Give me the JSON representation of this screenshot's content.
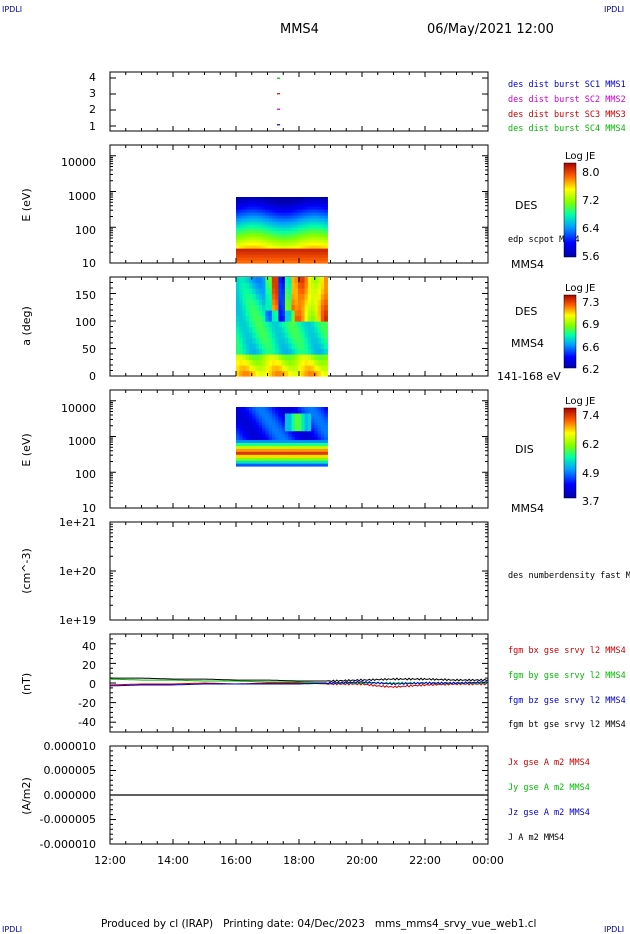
{
  "corner_mark": "IPDLI",
  "header": {
    "spacecraft": "MMS4",
    "datetime": "06/May/2021 12:00"
  },
  "footer": {
    "text": "Produced by cl (IRAP)   Printing date: 04/Dec/2023   mms_mms4_srvy_vue_web1.cl"
  },
  "colors": {
    "mms1": "#0000cc",
    "mms2": "#cc00cc",
    "mms3": "#cc0000",
    "mms4": "#00bb00",
    "black": "#000000"
  },
  "x_axis": {
    "ticks": [
      "12:00",
      "14:00",
      "16:00",
      "18:00",
      "20:00",
      "22:00",
      "00:00"
    ]
  },
  "chart_data": [
    {
      "type": "scatter",
      "panel": "burst-availability",
      "y_ticks": [
        "4",
        "3",
        "2",
        "1"
      ],
      "ylim": [
        0.6,
        4.4
      ],
      "legend": [
        "des dist burst SC1 MMS1",
        "des dist burst SC2 MMS2",
        "des dist burst SC3 MMS3",
        "des dist burst SC4 MMS4"
      ],
      "series": [
        {
          "name": "des dist burst SC1 MMS1",
          "y": 1,
          "x_hours": [
            17.3,
            17.4
          ]
        },
        {
          "name": "des dist burst SC2 MMS2",
          "y": 2,
          "x_hours": [
            17.3,
            17.4
          ]
        },
        {
          "name": "des dist burst SC3 MMS3",
          "y": 3,
          "x_hours": [
            17.3,
            17.4
          ]
        },
        {
          "name": "des dist burst SC4 MMS4",
          "y": 4,
          "x_hours": [
            17.3,
            17.4
          ]
        }
      ]
    },
    {
      "type": "heatmap",
      "panel": "des-energy-spectrogram",
      "ylabel": "E (eV)",
      "y_scale": "log",
      "y_ticks": [
        "10000",
        "1000",
        "100",
        "10"
      ],
      "ylim": [
        10,
        20000
      ],
      "x_range_hours": [
        16.0,
        18.9
      ],
      "right_labels": [
        "DES",
        "edp scpot MMS4",
        "MMS4"
      ],
      "colorbar": {
        "title": "Log JE",
        "ticks": [
          "8.0",
          "7.2",
          "6.4",
          "5.6"
        ],
        "min": 5.6,
        "max": 8.1
      }
    },
    {
      "type": "heatmap",
      "panel": "des-pitch-angle",
      "ylabel": "a (deg)",
      "y_ticks": [
        "150",
        "100",
        "50",
        "0"
      ],
      "ylim": [
        0,
        180
      ],
      "x_range_hours": [
        16.0,
        18.9
      ],
      "right_labels": [
        "DES",
        "MMS4",
        "141-168 eV"
      ],
      "colorbar": {
        "title": "Log JE",
        "ticks": [
          "7.3",
          "6.9",
          "6.6",
          "6.2"
        ],
        "min": 6.2,
        "max": 7.35
      }
    },
    {
      "type": "heatmap",
      "panel": "dis-energy-spectrogram",
      "ylabel": "E (eV)",
      "y_scale": "log",
      "y_ticks": [
        "10000",
        "1000",
        "100",
        "10"
      ],
      "ylim": [
        10,
        20000
      ],
      "x_range_hours": [
        16.0,
        18.9
      ],
      "right_labels": [
        "DIS",
        "MMS4"
      ],
      "colorbar": {
        "title": "Log JE",
        "ticks": [
          "7.4",
          "6.2",
          "4.9",
          "3.7"
        ],
        "min": 3.7,
        "max": 7.6
      }
    },
    {
      "type": "line",
      "panel": "density",
      "ylabel": "(cm^-3)",
      "y_scale": "log",
      "y_ticks": [
        "1e+21",
        "1e+20",
        "1e+19"
      ],
      "ylim": [
        1e+19,
        1e+21
      ],
      "legend": [
        "des numberdensity fast M"
      ],
      "series": []
    },
    {
      "type": "line",
      "panel": "magnetic-field",
      "ylabel": "(nT)",
      "y_ticks": [
        "40",
        "20",
        "0",
        "-20",
        "-40"
      ],
      "ylim": [
        -50,
        50
      ],
      "legend": [
        "fgm bx gse srvy l2 MMS4",
        "fgm by gse srvy l2 MMS4",
        "fgm bz gse srvy l2 MMS4",
        "fgm bt gse srvy l2 MMS4"
      ],
      "series": [
        {
          "name": "fgm bx gse srvy l2 MMS4",
          "x_hours": [
            12,
            13,
            14,
            15,
            16,
            17,
            18,
            19,
            20,
            20.5,
            21,
            21.5,
            22,
            23,
            24
          ],
          "values": [
            -2,
            -1,
            -1,
            0,
            -1,
            0,
            0,
            -1,
            -1,
            -3,
            -4,
            -3,
            -2,
            -1,
            -1
          ]
        },
        {
          "name": "fgm by gse srvy l2 MMS4",
          "x_hours": [
            12,
            13,
            14,
            15,
            16,
            17,
            18,
            19,
            20,
            21,
            22,
            23,
            24
          ],
          "values": [
            4,
            3,
            3,
            2,
            2,
            1,
            1,
            0,
            0,
            0,
            0,
            0,
            0
          ]
        },
        {
          "name": "fgm bz gse srvy l2 MMS4",
          "x_hours": [
            12,
            13,
            14,
            15,
            16,
            17,
            18,
            19,
            20,
            20.5,
            21,
            22,
            23,
            24
          ],
          "values": [
            -3,
            -2,
            -2,
            -1,
            -1,
            -1,
            -1,
            0,
            1,
            0,
            -1,
            0,
            0,
            1
          ]
        },
        {
          "name": "fgm bt gse srvy l2 MMS4",
          "x_hours": [
            12,
            13,
            14,
            15,
            16,
            17,
            18,
            19,
            20,
            21,
            22,
            23,
            24
          ],
          "values": [
            5,
            5,
            4,
            4,
            3,
            3,
            2,
            2,
            3,
            4,
            4,
            3,
            3
          ]
        }
      ]
    },
    {
      "type": "line",
      "panel": "current-density",
      "ylabel": "(A/m2)",
      "y_ticks": [
        "0.000010",
        "0.000005",
        "0.000000",
        "-0.000005",
        "-0.000010"
      ],
      "ylim": [
        -1e-05,
        1e-05
      ],
      "legend": [
        "Jx gse A m2 MMS4",
        "Jy gse A m2 MMS4",
        "Jz gse A m2 MMS4",
        "J A m2 MMS4"
      ],
      "series": [
        {
          "name": "J A m2 MMS4",
          "x_hours": [
            12,
            24
          ],
          "values": [
            0,
            0
          ]
        }
      ]
    }
  ]
}
